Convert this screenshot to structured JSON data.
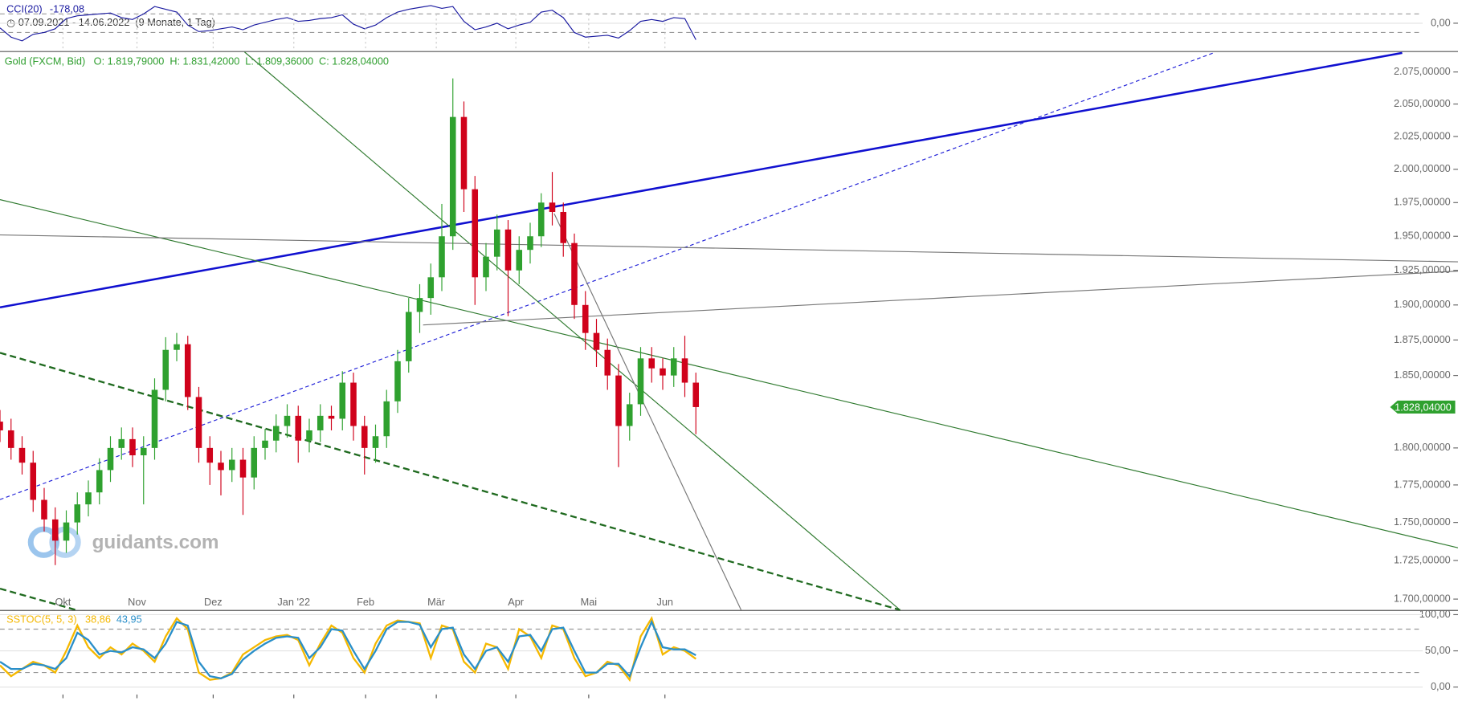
{
  "range": "07.09.2021 - 14.06.2022",
  "range_note": "(9 Monate, 1 Tag)",
  "watermark": "guidants.com",
  "chart_data": [
    {
      "type": "line",
      "xlim": [
        0,
        132
      ],
      "ylim": [
        -300,
        250
      ],
      "yticks": [
        {
          "value": 0,
          "label": "0,00"
        }
      ],
      "levels": [
        100,
        -100
      ],
      "series": [
        {
          "name": "CCI(20)",
          "color": "#1a1aa0",
          "current": {
            "value": -178.08,
            "label": "-178,08"
          },
          "values": [
            -50,
            -150,
            -190,
            -120,
            -100,
            -60,
            50,
            80,
            90,
            100,
            110,
            60,
            40,
            100,
            180,
            150,
            120,
            -20,
            -90,
            -80,
            -60,
            -40,
            -70,
            -20,
            10,
            40,
            60,
            20,
            30,
            50,
            60,
            90,
            -10,
            -60,
            -20,
            60,
            120,
            150,
            170,
            190,
            160,
            180,
            20,
            -70,
            -40,
            0,
            -60,
            -20,
            10,
            120,
            140,
            60,
            -100,
            -150,
            -140,
            -130,
            -160,
            -80,
            20,
            40,
            20,
            60,
            50,
            -178.08
          ]
        }
      ]
    },
    {
      "type": "candlestick",
      "name": "Gold (FXCM, Bid)",
      "color": "#2e9e2e",
      "up_color": "#2fa12f",
      "down_color": "#d0021b",
      "log_scale": true,
      "ohlc": [
        {
          "name": "O:",
          "value": 1819.79,
          "label": "1.819,79000"
        },
        {
          "name": "H:",
          "value": 1831.42,
          "label": "1.831,42000"
        },
        {
          "name": "L:",
          "value": 1809.36,
          "label": "1.809,36000"
        },
        {
          "name": "C:",
          "value": 1828.04,
          "label": "1.828,04000"
        }
      ],
      "last": {
        "value": 1828.04,
        "label": "1.828,04000"
      },
      "xlim": [
        0,
        132
      ],
      "ylim": [
        1693,
        2090
      ],
      "xticks": [
        {
          "value": 5.7,
          "label": "Okt"
        },
        {
          "value": 12.4,
          "label": "Nov"
        },
        {
          "value": 19.3,
          "label": "Dez"
        },
        {
          "value": 26.6,
          "label": "Jan '22"
        },
        {
          "value": 33.1,
          "label": "Feb"
        },
        {
          "value": 39.5,
          "label": "Mär"
        },
        {
          "value": 46.7,
          "label": "Apr"
        },
        {
          "value": 53.3,
          "label": "Mai"
        },
        {
          "value": 60.2,
          "label": "Jun"
        }
      ],
      "yticks": [
        {
          "value": 1700,
          "label": "1.700,00000"
        },
        {
          "value": 1725,
          "label": "1.725,00000"
        },
        {
          "value": 1750,
          "label": "1.750,00000"
        },
        {
          "value": 1775,
          "label": "1.775,00000"
        },
        {
          "value": 1800,
          "label": "1.800,00000"
        },
        {
          "value": 1850,
          "label": "1.850,00000"
        },
        {
          "value": 1875,
          "label": "1.875,00000"
        },
        {
          "value": 1900,
          "label": "1.900,00000"
        },
        {
          "value": 1925,
          "label": "1.925,00000"
        },
        {
          "value": 1950,
          "label": "1.950,00000"
        },
        {
          "value": 1975,
          "label": "1.975,00000"
        },
        {
          "value": 2000,
          "label": "2.000,00000"
        },
        {
          "value": 2025,
          "label": "2.025,00000"
        },
        {
          "value": 2050,
          "label": "2.050,00000"
        },
        {
          "value": 2075,
          "label": "2.075,00000"
        }
      ],
      "open": [
        1818,
        1812,
        1800,
        1790,
        1765,
        1752,
        1738,
        1750,
        1762,
        1770,
        1785,
        1800,
        1806,
        1795,
        1800,
        1840,
        1868,
        1872,
        1835,
        1800,
        1790,
        1785,
        1792,
        1780,
        1800,
        1805,
        1815,
        1822,
        1805,
        1812,
        1822,
        1820,
        1845,
        1815,
        1800,
        1808,
        1832,
        1860,
        1895,
        1905,
        1920,
        1950,
        2040,
        1985,
        1920,
        1935,
        1955,
        1925,
        1940,
        1950,
        1975,
        1968,
        1945,
        1900,
        1880,
        1868,
        1850,
        1815,
        1830,
        1862,
        1855,
        1850,
        1862,
        1845
      ],
      "high": [
        1826,
        1820,
        1808,
        1798,
        1773,
        1760,
        1758,
        1770,
        1778,
        1793,
        1808,
        1814,
        1814,
        1808,
        1848,
        1877,
        1880,
        1878,
        1842,
        1808,
        1798,
        1800,
        1800,
        1808,
        1813,
        1823,
        1830,
        1829,
        1820,
        1830,
        1829,
        1853,
        1852,
        1822,
        1816,
        1840,
        1868,
        1905,
        1915,
        1930,
        1974,
        2070,
        2052,
        1995,
        1945,
        1966,
        1962,
        1950,
        1960,
        1982,
        1998,
        1975,
        1952,
        1910,
        1890,
        1876,
        1858,
        1838,
        1870,
        1870,
        1862,
        1870,
        1878,
        1852
      ],
      "low": [
        1804,
        1792,
        1782,
        1757,
        1744,
        1722,
        1730,
        1742,
        1754,
        1762,
        1777,
        1792,
        1787,
        1762,
        1792,
        1832,
        1860,
        1826,
        1790,
        1775,
        1768,
        1777,
        1755,
        1772,
        1792,
        1797,
        1807,
        1790,
        1797,
        1804,
        1812,
        1812,
        1805,
        1782,
        1790,
        1800,
        1824,
        1852,
        1880,
        1893,
        1910,
        1940,
        1968,
        1900,
        1910,
        1925,
        1892,
        1915,
        1930,
        1942,
        1958,
        1935,
        1890,
        1868,
        1856,
        1840,
        1787,
        1805,
        1822,
        1845,
        1840,
        1842,
        1835,
        1809.36
      ],
      "close": [
        1812,
        1800,
        1790,
        1765,
        1752,
        1738,
        1750,
        1762,
        1770,
        1785,
        1800,
        1806,
        1795,
        1800,
        1840,
        1868,
        1872,
        1835,
        1800,
        1790,
        1785,
        1792,
        1780,
        1800,
        1805,
        1815,
        1822,
        1805,
        1812,
        1822,
        1820,
        1845,
        1815,
        1800,
        1808,
        1832,
        1860,
        1895,
        1905,
        1920,
        1950,
        2040,
        1985,
        1920,
        1935,
        1955,
        1925,
        1940,
        1950,
        1975,
        1968,
        1945,
        1900,
        1880,
        1868,
        1850,
        1815,
        1830,
        1862,
        1855,
        1850,
        1862,
        1845,
        1828.04
      ]
    },
    {
      "type": "line",
      "xlim": [
        0,
        132
      ],
      "ylim": [
        -15.4,
        106.4
      ],
      "yticks": [
        {
          "value": 0,
          "label": "0,00"
        },
        {
          "value": 50,
          "label": "50,00"
        },
        {
          "value": 100,
          "label": "100,00"
        }
      ],
      "levels": [
        80,
        20
      ],
      "title": "SSTOC(5, 5, 3)",
      "series": [
        {
          "color": "#f5b800",
          "current": {
            "value": 38.86,
            "label": "38,86"
          },
          "values": [
            30,
            15,
            25,
            35,
            30,
            20,
            50,
            85,
            55,
            40,
            55,
            45,
            60,
            50,
            35,
            70,
            95,
            80,
            20,
            10,
            12,
            20,
            45,
            55,
            65,
            70,
            72,
            65,
            30,
            60,
            85,
            75,
            40,
            20,
            60,
            85,
            92,
            90,
            88,
            40,
            85,
            80,
            35,
            20,
            60,
            55,
            25,
            80,
            70,
            40,
            85,
            80,
            40,
            15,
            20,
            35,
            30,
            10,
            70,
            95,
            45,
            55,
            50,
            38.86
          ]
        },
        {
          "color": "#2a8fc9",
          "current": {
            "value": 43.95,
            "label": "43,95"
          },
          "values": [
            35,
            25,
            25,
            32,
            30,
            25,
            40,
            75,
            65,
            45,
            50,
            48,
            55,
            52,
            40,
            60,
            90,
            85,
            35,
            15,
            12,
            18,
            38,
            50,
            60,
            68,
            70,
            68,
            40,
            55,
            80,
            78,
            50,
            25,
            50,
            80,
            90,
            90,
            86,
            55,
            80,
            82,
            45,
            25,
            50,
            55,
            35,
            70,
            72,
            50,
            80,
            82,
            50,
            20,
            20,
            32,
            32,
            15,
            55,
            90,
            55,
            52,
            52,
            43.95
          ]
        }
      ]
    }
  ]
}
